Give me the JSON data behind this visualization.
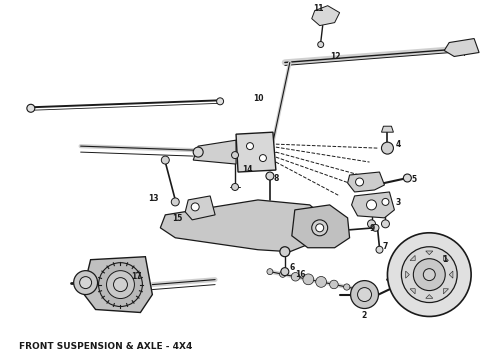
{
  "title": "FRONT SUSPENSION & AXLE - 4X4",
  "title_fontsize": 6.5,
  "title_fontweight": "bold",
  "background_color": "#ffffff",
  "figsize": [
    4.9,
    3.6
  ],
  "dpi": 100,
  "dark": "#1a1a1a",
  "gray": "#888888",
  "lightgray": "#cccccc"
}
